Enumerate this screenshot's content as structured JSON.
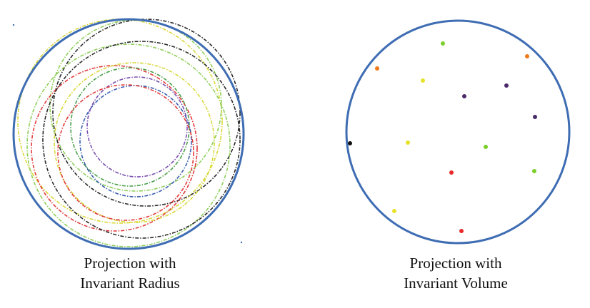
{
  "panels": [
    {
      "caption_line1": "Projection with",
      "caption_line2": "Invariant Radius",
      "boundary_color": "#3f6db3",
      "circle_colors": [
        "#d8d83a",
        "#8fcf5a",
        "#2b2b2b",
        "#e23b3b",
        "#4aa04a",
        "#3a5fb0",
        "#7a4fb0",
        "#d8d83a",
        "#8fcf5a",
        "#2b2b2b",
        "#e23b3b"
      ]
    },
    {
      "caption_line1": "Projection with",
      "caption_line2": "Invariant Volume",
      "boundary_color": "#3f6db3",
      "point_colors": [
        "#7ccf2a",
        "#f07a1a",
        "#f07a1a",
        "#e6e22a",
        "#4a2a6a",
        "#4a2a6a",
        "#4a2a6a",
        "#111111",
        "#e6e22a",
        "#7ccf2a",
        "#e82a2a",
        "#7ccf2a",
        "#e6e22a",
        "#e82a2a"
      ]
    }
  ]
}
